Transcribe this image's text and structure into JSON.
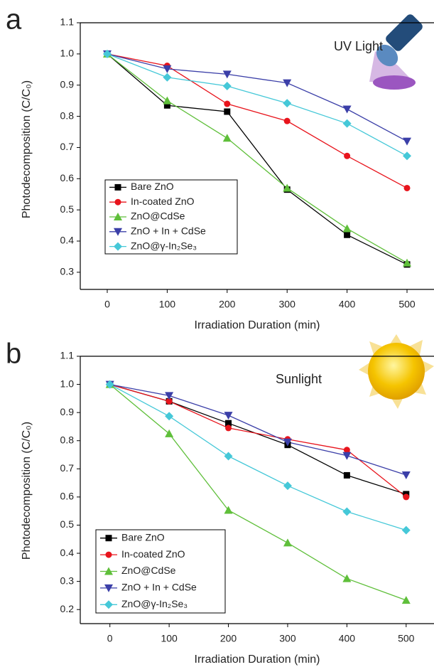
{
  "chart_data": [
    {
      "type": "line",
      "panel_label": "a",
      "annotation": "UV Light",
      "x_label": "Irradiation Duration (min)",
      "y_label": "Photodecomposition (C/C₀)",
      "x": [
        0,
        100,
        200,
        300,
        400,
        500
      ],
      "xlim": [
        -45,
        545
      ],
      "xticks": [
        0,
        100,
        200,
        300,
        400,
        500
      ],
      "ylim": [
        0.245,
        1.1
      ],
      "yticks": [
        0.3,
        0.4,
        0.5,
        0.6,
        0.7,
        0.8,
        0.9,
        {
          "value": 1,
          "label": "1.0"
        },
        1.1
      ],
      "series": [
        {
          "name": "Bare ZnO",
          "color": "#000000",
          "marker": "square",
          "values": [
            1.0,
            0.835,
            0.815,
            0.565,
            0.42,
            0.325
          ]
        },
        {
          "name": "In-coated ZnO",
          "color": "#e8141c",
          "marker": "circle",
          "values": [
            1.0,
            0.962,
            0.84,
            0.785,
            0.673,
            0.57
          ]
        },
        {
          "name": "ZnO@CdSe",
          "color": "#5fbf3a",
          "marker": "triangle-up",
          "values": [
            1.0,
            0.85,
            0.73,
            0.57,
            0.44,
            0.33
          ]
        },
        {
          "name": "ZnO + In + CdSe",
          "color": "#3b3fa8",
          "marker": "triangle-down",
          "values": [
            1.0,
            0.952,
            0.935,
            0.907,
            0.823,
            0.72
          ]
        },
        {
          "name": "ZnO@γ-In₂Se₃",
          "color": "#45c8d8",
          "marker": "diamond",
          "values": [
            1.0,
            0.925,
            0.897,
            0.842,
            0.777,
            0.673
          ]
        }
      ]
    },
    {
      "type": "line",
      "panel_label": "b",
      "annotation": "Sunlight",
      "x_label": "Irradiation Duration (min)",
      "y_label": "Photodecomposition (C/C₀)",
      "x": [
        0,
        100,
        200,
        300,
        400,
        500
      ],
      "xlim": [
        -50,
        547
      ],
      "xticks": [
        0,
        100,
        200,
        300,
        400,
        500
      ],
      "ylim": [
        0.15,
        1.1
      ],
      "yticks": [
        0.2,
        0.3,
        0.4,
        0.5,
        0.6,
        0.7,
        0.8,
        0.9,
        {
          "value": 1,
          "label": "1.0"
        },
        1.1
      ],
      "series": [
        {
          "name": "Bare ZnO",
          "color": "#000000",
          "marker": "square",
          "values": [
            1.0,
            0.94,
            0.862,
            0.785,
            0.677,
            0.61
          ]
        },
        {
          "name": "In-coated ZnO",
          "color": "#e8141c",
          "marker": "circle",
          "values": [
            1.0,
            0.94,
            0.845,
            0.805,
            0.767,
            0.6
          ]
        },
        {
          "name": "ZnO@CdSe",
          "color": "#5fbf3a",
          "marker": "triangle-up",
          "values": [
            1.0,
            0.825,
            0.553,
            0.437,
            0.31,
            0.233
          ]
        },
        {
          "name": "ZnO + In + CdSe",
          "color": "#3b3fa8",
          "marker": "triangle-down",
          "values": [
            1.0,
            0.96,
            0.89,
            0.795,
            0.747,
            0.678
          ]
        },
        {
          "name": "ZnO@γ-In₂Se₃",
          "color": "#45c8d8",
          "marker": "diamond",
          "values": [
            1.0,
            0.887,
            0.745,
            0.64,
            0.548,
            0.482
          ]
        }
      ]
    }
  ]
}
